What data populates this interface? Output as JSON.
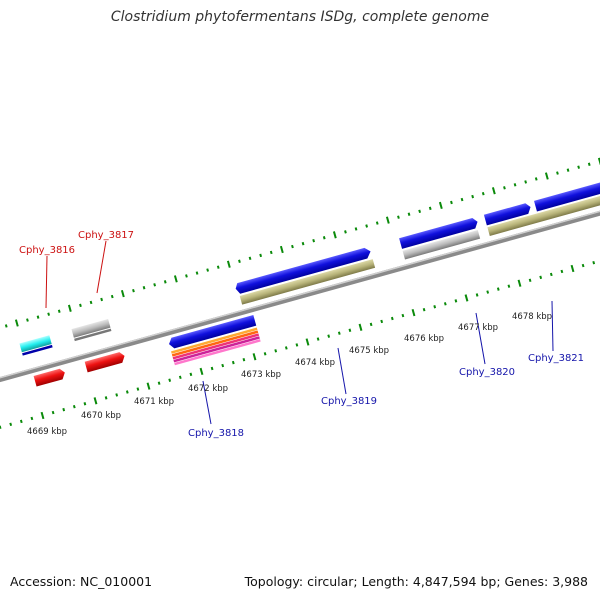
{
  "header": {
    "title": "Clostridium phytofermentans ISDg, complete genome"
  },
  "footer": {
    "accession": "Accession: NC_010001",
    "topology": "Topology: circular; Length: 4,847,594 bp; Genes: 3,988"
  },
  "kbp_labels": [
    "4669 kbp",
    "4670 kbp",
    "4671 kbp",
    "4672 kbp",
    "4673 kbp",
    "4674 kbp",
    "4675 kbp",
    "4676 kbp",
    "4677 kbp",
    "4678 kbp"
  ],
  "gene_labels": {
    "cphy_3816": "Cphy_3816",
    "cphy_3817": "Cphy_3817",
    "cphy_3818": "Cphy_3818",
    "cphy_3819": "Cphy_3819",
    "cphy_3820": "Cphy_3820",
    "cphy_3821": "Cphy_3821"
  },
  "colors": {
    "forward_gene": "#1010dd",
    "reverse_gene_red": "#ee1111",
    "cyan_gene": "#22eeee",
    "grey_gene": "#bbbbbb",
    "khaki_gene": "#b8b47a",
    "backbone": "#888888",
    "tick": "#0a8a0a",
    "label_forward": "#1515aa",
    "label_reverse": "#cc1111"
  }
}
